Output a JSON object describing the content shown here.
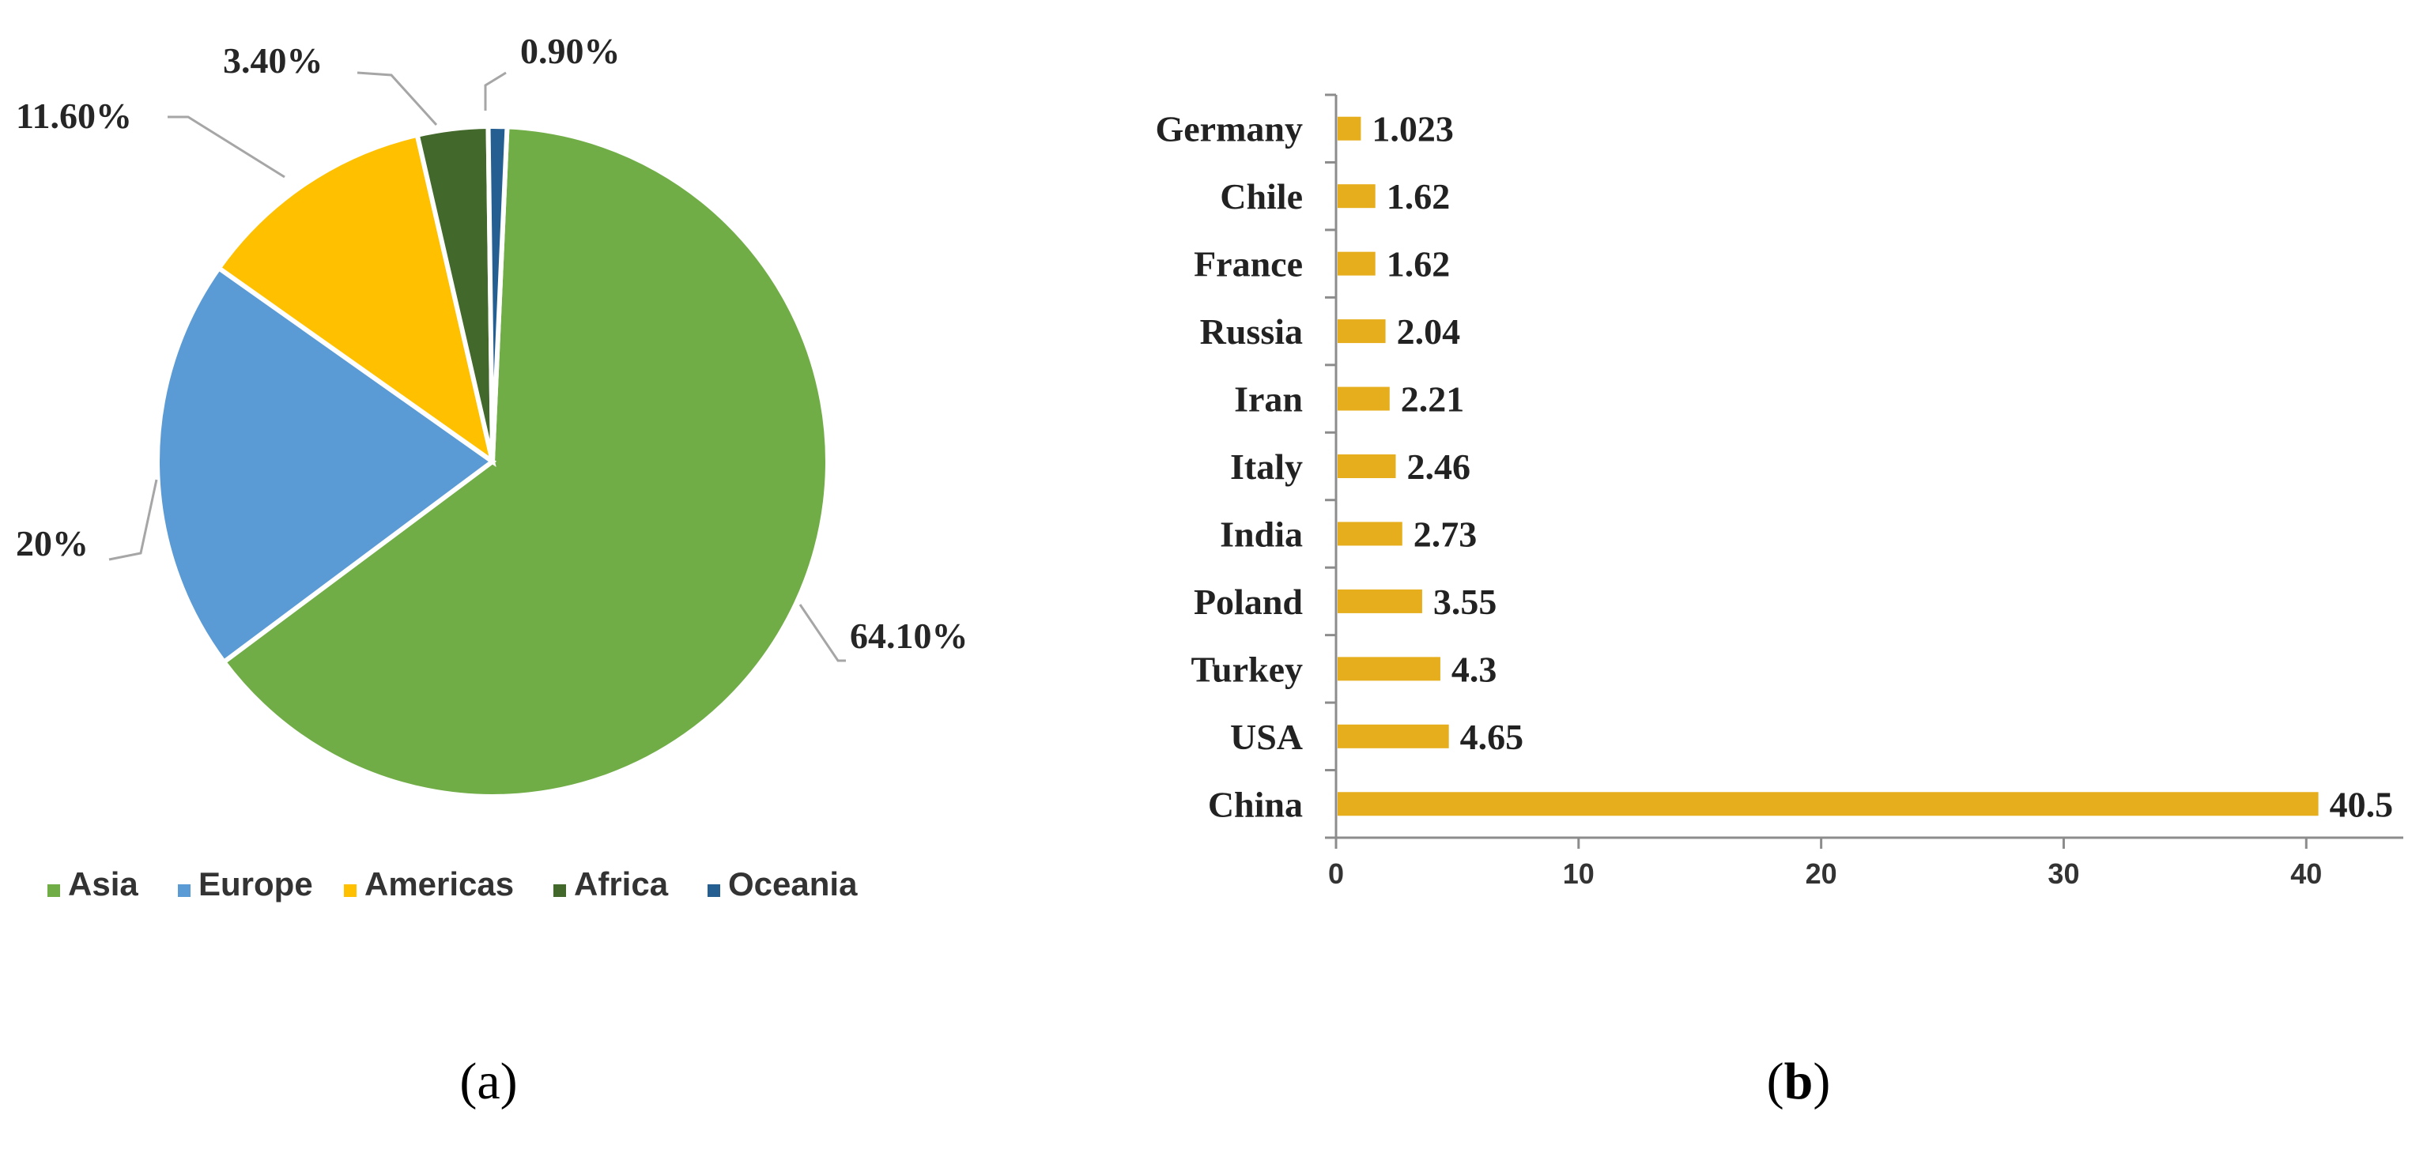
{
  "chart_data": [
    {
      "type": "pie",
      "panel_label": {
        "open": "(",
        "letter": "a",
        "close": ")"
      },
      "slices": [
        {
          "name": "Asia",
          "value": 64.1,
          "label": "64.10%",
          "color": "#70AD47"
        },
        {
          "name": "Europe",
          "value": 20.0,
          "label": "20%",
          "color": "#5B9BD5"
        },
        {
          "name": "Americas",
          "value": 11.6,
          "label": "11.60%",
          "color": "#FFC000"
        },
        {
          "name": "Africa",
          "value": 3.4,
          "label": "3.40%",
          "color": "#43682B"
        },
        {
          "name": "Oceania",
          "value": 0.9,
          "label": "0.90%",
          "color": "#255E91"
        }
      ],
      "legend": [
        "Asia",
        "Europe",
        "Americas",
        "Africa",
        "Oceania"
      ],
      "legend_position": "bottom"
    },
    {
      "type": "bar",
      "orientation": "horizontal",
      "panel_label": {
        "open": "(",
        "letter": "b",
        "close": ")"
      },
      "categories": [
        "China",
        "USA",
        "Turkey",
        "Poland",
        "India",
        "Italy",
        "Iran",
        "Russia",
        "France",
        "Chile",
        "Germany"
      ],
      "values": [
        40.5,
        4.65,
        4.3,
        3.55,
        2.73,
        2.46,
        2.21,
        2.04,
        1.62,
        1.62,
        1.023
      ],
      "value_labels": [
        "40.5",
        "4.65",
        "4.3",
        "3.55",
        "2.73",
        "2.46",
        "2.21",
        "2.04",
        "1.62",
        "1.62",
        "1.023"
      ],
      "color": "#E6AE1C",
      "xlim": [
        0,
        44
      ],
      "xticks": [
        "0",
        "10",
        "20",
        "30",
        "40"
      ],
      "grid": false
    }
  ]
}
